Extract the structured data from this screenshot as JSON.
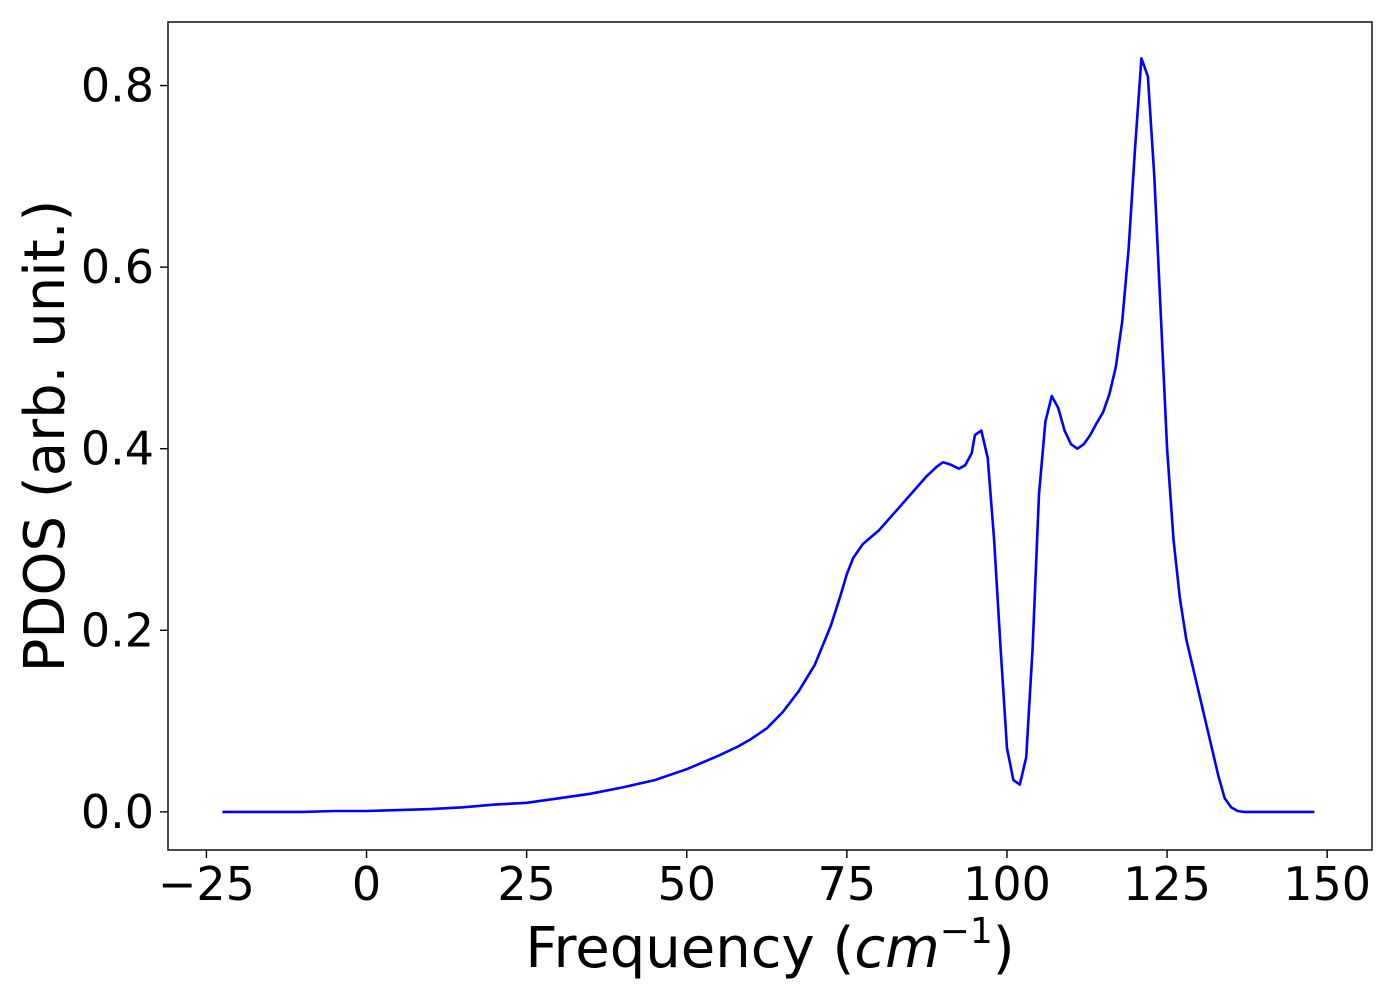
{
  "chart_data": {
    "type": "line",
    "title": "",
    "xlabel": "Frequency (",
    "xlabel_math": "cm",
    "xlabel_exponent": "−1",
    "xlabel_close": ")",
    "ylabel": "PDOS (arb. unit.)",
    "xlim": [
      -31,
      157
    ],
    "ylim": [
      -0.042,
      0.87
    ],
    "grid": false,
    "legend": "none",
    "x_ticks": [
      -25,
      0,
      25,
      50,
      75,
      100,
      125,
      150
    ],
    "x_tick_labels": [
      "−25",
      "0",
      "25",
      "50",
      "75",
      "100",
      "125",
      "150"
    ],
    "y_ticks": [
      0.0,
      0.2,
      0.4,
      0.6,
      0.8
    ],
    "y_tick_labels": [
      "0.0",
      "0.2",
      "0.4",
      "0.6",
      "0.8"
    ],
    "series": [
      {
        "color": "#0000ff",
        "x": [
          -22.5,
          -15,
          -10,
          -5,
          0,
          5,
          10,
          15,
          20,
          25,
          30,
          35,
          40,
          45,
          50,
          55,
          58,
          60,
          62.5,
          65,
          67.5,
          70,
          72.5,
          74,
          75,
          76,
          77.5,
          80,
          82.5,
          85,
          87.5,
          89,
          90,
          91,
          92.5,
          93.5,
          94.5,
          95,
          96,
          97,
          98,
          99,
          100,
          101,
          102,
          103,
          104,
          105,
          106,
          107,
          108,
          109,
          110,
          111,
          112,
          113,
          114,
          115,
          116,
          117,
          118,
          119,
          120,
          121,
          122,
          123,
          124,
          125,
          126,
          127,
          128,
          129,
          130,
          131,
          132,
          133,
          134,
          135,
          136,
          137,
          140,
          148
        ],
        "y": [
          0.0,
          0.0,
          0.0,
          0.001,
          0.001,
          0.002,
          0.003,
          0.005,
          0.008,
          0.01,
          0.015,
          0.02,
          0.027,
          0.035,
          0.047,
          0.062,
          0.072,
          0.08,
          0.092,
          0.11,
          0.133,
          0.162,
          0.205,
          0.238,
          0.262,
          0.28,
          0.295,
          0.31,
          0.33,
          0.35,
          0.37,
          0.38,
          0.385,
          0.383,
          0.378,
          0.382,
          0.395,
          0.415,
          0.42,
          0.39,
          0.3,
          0.18,
          0.07,
          0.035,
          0.03,
          0.06,
          0.18,
          0.35,
          0.43,
          0.458,
          0.445,
          0.42,
          0.405,
          0.4,
          0.405,
          0.415,
          0.428,
          0.44,
          0.46,
          0.49,
          0.54,
          0.62,
          0.73,
          0.83,
          0.81,
          0.7,
          0.55,
          0.4,
          0.3,
          0.235,
          0.19,
          0.16,
          0.13,
          0.1,
          0.07,
          0.04,
          0.015,
          0.005,
          0.001,
          0.0,
          0.0,
          0.0
        ]
      }
    ]
  }
}
